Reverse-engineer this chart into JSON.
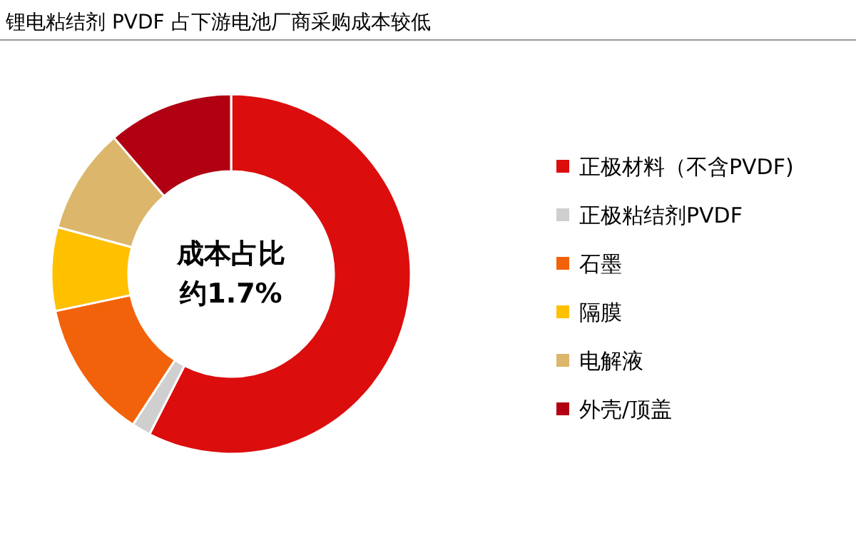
{
  "chart_data": {
    "type": "donut",
    "title": "锂电粘结剂 PVDF 占下游电池厂商采购成本较低",
    "categories": [
      "正极材料（不含PVDF)",
      "正极粘结剂PVDF",
      "石墨",
      "隔膜",
      "电解液",
      "外壳/顶盖"
    ],
    "values": [
      57.5,
      1.7,
      12.5,
      7.5,
      9.5,
      11.3
    ],
    "colors": [
      "#dc0d0d",
      "#cfcfcf",
      "#f2620a",
      "#ffc000",
      "#dcb66a",
      "#b00012"
    ],
    "annotations": [
      "成本占比",
      "约1.7%"
    ],
    "legend": "right"
  }
}
